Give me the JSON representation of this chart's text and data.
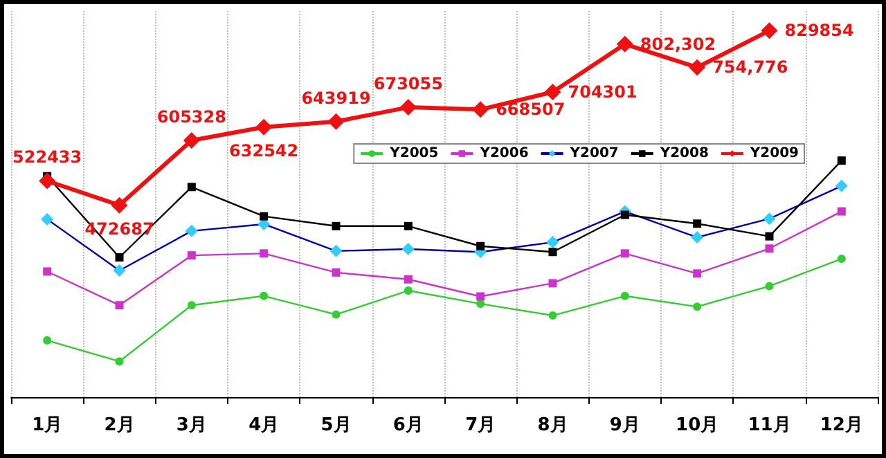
{
  "chart_data": {
    "type": "line",
    "categories": [
      "1月",
      "2月",
      "3月",
      "4月",
      "5月",
      "6月",
      "7月",
      "8月",
      "9月",
      "10月",
      "11月",
      "12月"
    ],
    "ylim": [
      80000,
      870000
    ],
    "grid": "x",
    "legend": "top right",
    "series": [
      {
        "name": "Y2005",
        "color": "#33cc33",
        "marker": "circle",
        "values": [
          196000,
          153000,
          268000,
          287000,
          249000,
          298000,
          271000,
          247000,
          287000,
          265000,
          307000,
          363000
        ]
      },
      {
        "name": "Y2006",
        "color": "#cc33cc",
        "marker": "square",
        "values": [
          337000,
          268000,
          370000,
          374000,
          335000,
          321000,
          286000,
          313000,
          374000,
          333000,
          384000,
          460000
        ]
      },
      {
        "name": "Y2007",
        "color": "#33ccff",
        "marker": "diamond",
        "values": [
          444000,
          339000,
          420000,
          434000,
          379000,
          383000,
          377000,
          397000,
          460000,
          407000,
          445000,
          512000
        ]
      },
      {
        "name": "Y2008",
        "color": "#000000",
        "marker": "square",
        "values": [
          532000,
          366000,
          510000,
          450000,
          430000,
          430000,
          389000,
          377000,
          453000,
          435000,
          409000,
          564000
        ]
      },
      {
        "name": "Y2009",
        "color": "#ee1111",
        "marker": "diamond",
        "values": [
          522433,
          472687,
          605328,
          632542,
          643919,
          673055,
          668507,
          704301,
          802302,
          754776,
          829854,
          null
        ],
        "value_labels": [
          "522433",
          "472687",
          "605328",
          "632542",
          "643919",
          "673055",
          "668507",
          "704301",
          "802,302",
          "754,776",
          "829854",
          null
        ]
      }
    ]
  }
}
